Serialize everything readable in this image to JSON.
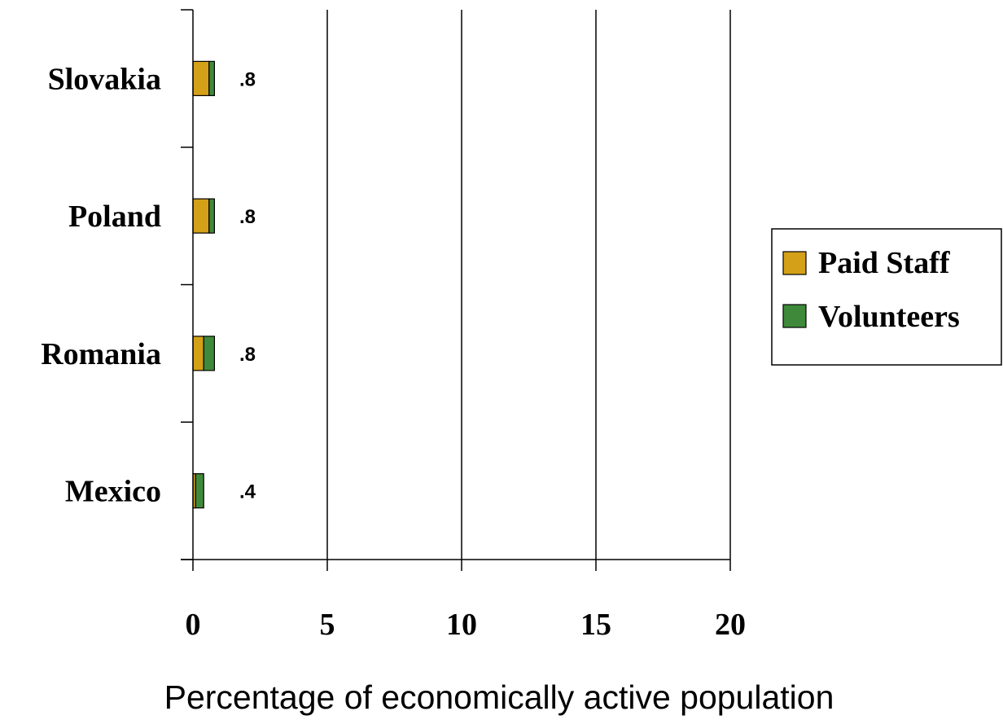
{
  "chart_data": {
    "type": "bar",
    "orientation": "horizontal",
    "stacked": true,
    "categories": [
      "Slovakia",
      "Poland",
      "Romania",
      "Mexico"
    ],
    "series": [
      {
        "name": "Paid Staff",
        "values": [
          0.6,
          0.6,
          0.4,
          0.1
        ],
        "color": "#D4A017"
      },
      {
        "name": "Volunteers",
        "values": [
          0.2,
          0.2,
          0.4,
          0.3
        ],
        "color": "#3F8A3A"
      }
    ],
    "totals": [
      ".8",
      ".8",
      ".8",
      ".4"
    ],
    "xlabel": "Percentage of economically active population",
    "ylabel": "",
    "xlim": [
      0,
      20
    ],
    "xticks": [
      "0",
      "5",
      "10",
      "15",
      "20"
    ],
    "grid": "vertical",
    "legend_position": "right"
  }
}
